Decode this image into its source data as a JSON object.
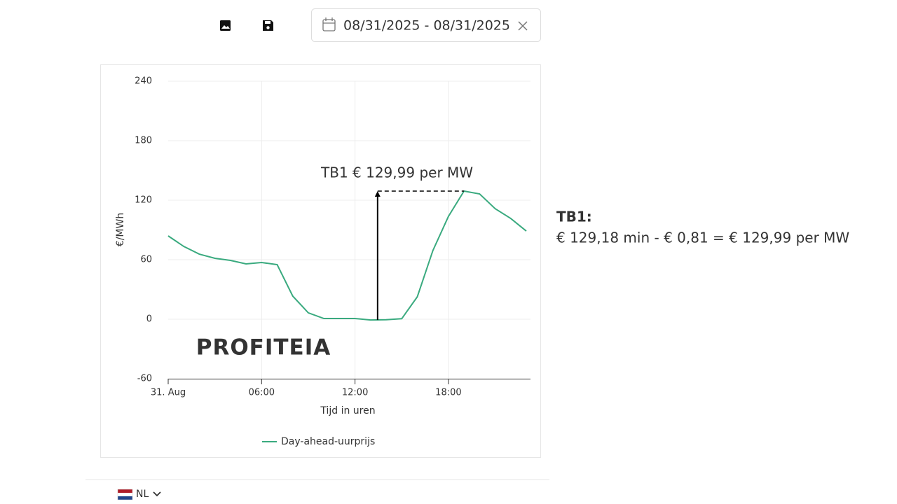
{
  "toolbar": {
    "date_range": "08/31/2025 - 08/31/2025"
  },
  "chart_data": {
    "type": "line",
    "x": [
      0,
      1,
      2,
      3,
      4,
      5,
      6,
      7,
      8,
      9,
      10,
      11,
      12,
      13,
      14,
      15,
      16,
      17,
      18,
      19,
      20,
      21,
      22,
      23
    ],
    "series": [
      {
        "name": "Day-ahead-uurprijs",
        "color": "#3aaa7f",
        "values": [
          84,
          73.4,
          65.6,
          61.4,
          59.3,
          55.8,
          57.2,
          55,
          23.3,
          6.4,
          0.7,
          0.7,
          0.7,
          -0.81,
          -0.5,
          0.5,
          22.6,
          69.2,
          103.7,
          129.18,
          126.3,
          111.5,
          101.6,
          88.9
        ]
      }
    ],
    "xlim": [
      0,
      23.27
    ],
    "xticks": [
      {
        "value": 0,
        "label": "31. Aug"
      },
      {
        "value": 6,
        "label": "06:00"
      },
      {
        "value": 12,
        "label": "12:00"
      },
      {
        "value": 18,
        "label": "18:00"
      }
    ],
    "ylim": [
      -60,
      240
    ],
    "yticks": [
      -60,
      0,
      60,
      120,
      180,
      240
    ],
    "xlabel": "Tijd in uren",
    "ylabel": "€/MWh",
    "grid": true,
    "watermark": "PROFITEIA",
    "annotation": "TB1 € 129,99  per MW"
  },
  "side_note": {
    "title": "TB1:",
    "text": "€ 129,18 min - € 0,81 = € 129,99  per MW"
  },
  "footer": {
    "language": "NL"
  }
}
